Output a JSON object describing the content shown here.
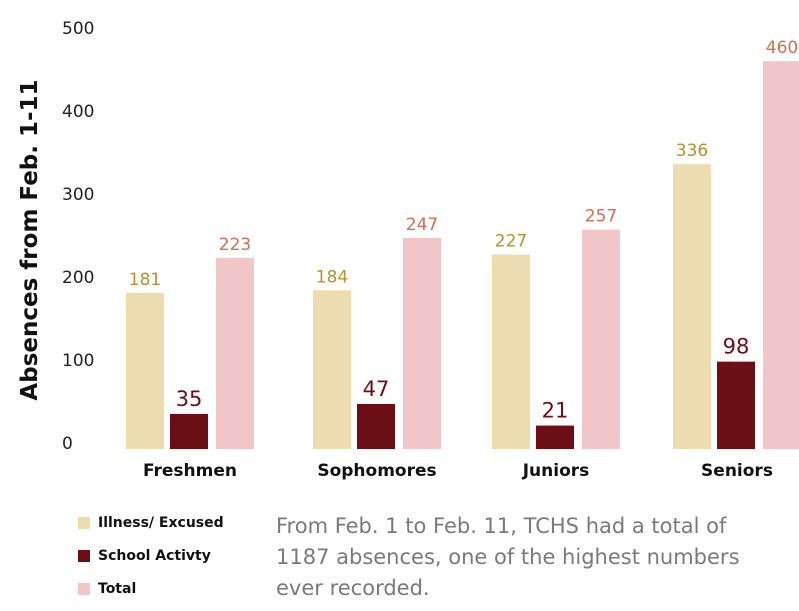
{
  "chart_data": {
    "type": "bar",
    "categories": [
      "Freshmen",
      "Sophomores",
      "Juniors",
      "Seniors"
    ],
    "series": [
      {
        "name": "Illness/ Excused",
        "values": [
          181,
          184,
          227,
          336
        ],
        "color": "#ecdcb0",
        "label_color": "#b8912a"
      },
      {
        "name": "School Activty",
        "values": [
          35,
          47,
          21,
          98
        ],
        "color": "#6b0f14",
        "label_color": "#6b0f14"
      },
      {
        "name": "Total",
        "values": [
          223,
          247,
          257,
          460
        ],
        "color": "#f0c6c8",
        "label_color": "#d2704f"
      }
    ],
    "ylabel": "Absences from Feb. 1-11",
    "ylim": [
      0,
      500
    ],
    "yticks": [
      0,
      100,
      200,
      300,
      400,
      500
    ],
    "grid": false,
    "legend": "bottom-left"
  },
  "caption": {
    "lines": [
      "From Feb. 1 to Feb. 11, TCHS had a total of",
      "1187 absences, one of the highest numbers",
      "ever recorded."
    ]
  }
}
